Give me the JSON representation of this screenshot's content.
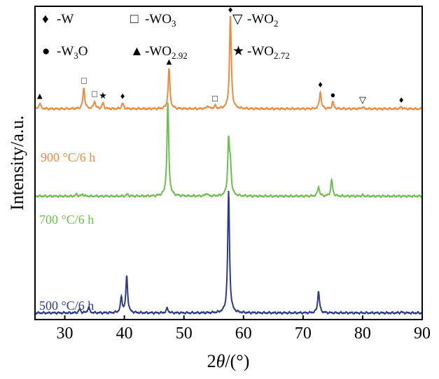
{
  "chart_data": {
    "type": "line",
    "title": "",
    "xlabel_prefix": "2",
    "xlabel_theta": "θ",
    "xlabel_suffix": "/(°)",
    "ylabel": "Intensity/a.u.",
    "xlim": [
      25,
      90
    ],
    "xticks": [
      "30",
      "40",
      "50",
      "60",
      "70",
      "80",
      "90"
    ],
    "legend": [
      {
        "symbol": "♦",
        "text": "-W",
        "sub": ""
      },
      {
        "symbol": "□",
        "text": "-WO",
        "sub": "3"
      },
      {
        "symbol": "▽",
        "text": "-WO",
        "sub": "2"
      },
      {
        "symbol": "●",
        "text": "-W",
        "sub": "3",
        "tail": "O"
      },
      {
        "symbol": "▲",
        "text": "-WO",
        "sub": "2.92"
      },
      {
        "symbol": "★",
        "text": "-WO",
        "sub": "2.72"
      }
    ],
    "series": [
      {
        "name": "900 °C/6 h",
        "color": "#ee8a3c",
        "baseline": 0.0,
        "peaks": [
          [
            25.8,
            0.06
          ],
          [
            33.2,
            0.22
          ],
          [
            35.0,
            0.08
          ],
          [
            36.4,
            0.06
          ],
          [
            39.7,
            0.06
          ],
          [
            47.5,
            0.42
          ],
          [
            54.0,
            0.03
          ],
          [
            55.2,
            0.03
          ],
          [
            57.8,
            0.97
          ],
          [
            72.9,
            0.18
          ],
          [
            75.0,
            0.07
          ],
          [
            80.0,
            0.02
          ],
          [
            86.5,
            0.02
          ]
        ],
        "markers": [
          {
            "x": 25.8,
            "symbol": "▲"
          },
          {
            "x": 33.2,
            "symbol": "□"
          },
          {
            "x": 35.0,
            "symbol": "□"
          },
          {
            "x": 36.4,
            "symbol": "★"
          },
          {
            "x": 39.7,
            "symbol": "♦"
          },
          {
            "x": 47.5,
            "symbol": "▲"
          },
          {
            "x": 55.2,
            "symbol": "□"
          },
          {
            "x": 57.8,
            "symbol": "♦"
          },
          {
            "x": 72.9,
            "symbol": "♦"
          },
          {
            "x": 75.0,
            "symbol": "●"
          },
          {
            "x": 80.0,
            "symbol": "▽"
          },
          {
            "x": 86.5,
            "symbol": "♦"
          }
        ]
      },
      {
        "name": "700 °C/6 h",
        "color": "#6cbf4c",
        "baseline": -0.92,
        "peaks": [
          [
            32.0,
            0.02
          ],
          [
            33.0,
            0.02
          ],
          [
            40.5,
            0.02
          ],
          [
            47.3,
            0.98
          ],
          [
            53.8,
            0.03
          ],
          [
            57.5,
            0.56
          ],
          [
            57.8,
            0.28
          ],
          [
            72.6,
            0.1
          ],
          [
            74.8,
            0.17
          ],
          [
            80.0,
            0.01
          ]
        ]
      },
      {
        "name": "500 °C/6 h",
        "color": "#2b3a8c",
        "baseline": -2.15,
        "peaks": [
          [
            32.5,
            0.04
          ],
          [
            34.0,
            0.06
          ],
          [
            39.5,
            0.16
          ],
          [
            40.4,
            0.38
          ],
          [
            47.2,
            0.05
          ],
          [
            57.5,
            1.28
          ],
          [
            72.6,
            0.23
          ],
          [
            86.5,
            0.01
          ]
        ]
      }
    ]
  }
}
